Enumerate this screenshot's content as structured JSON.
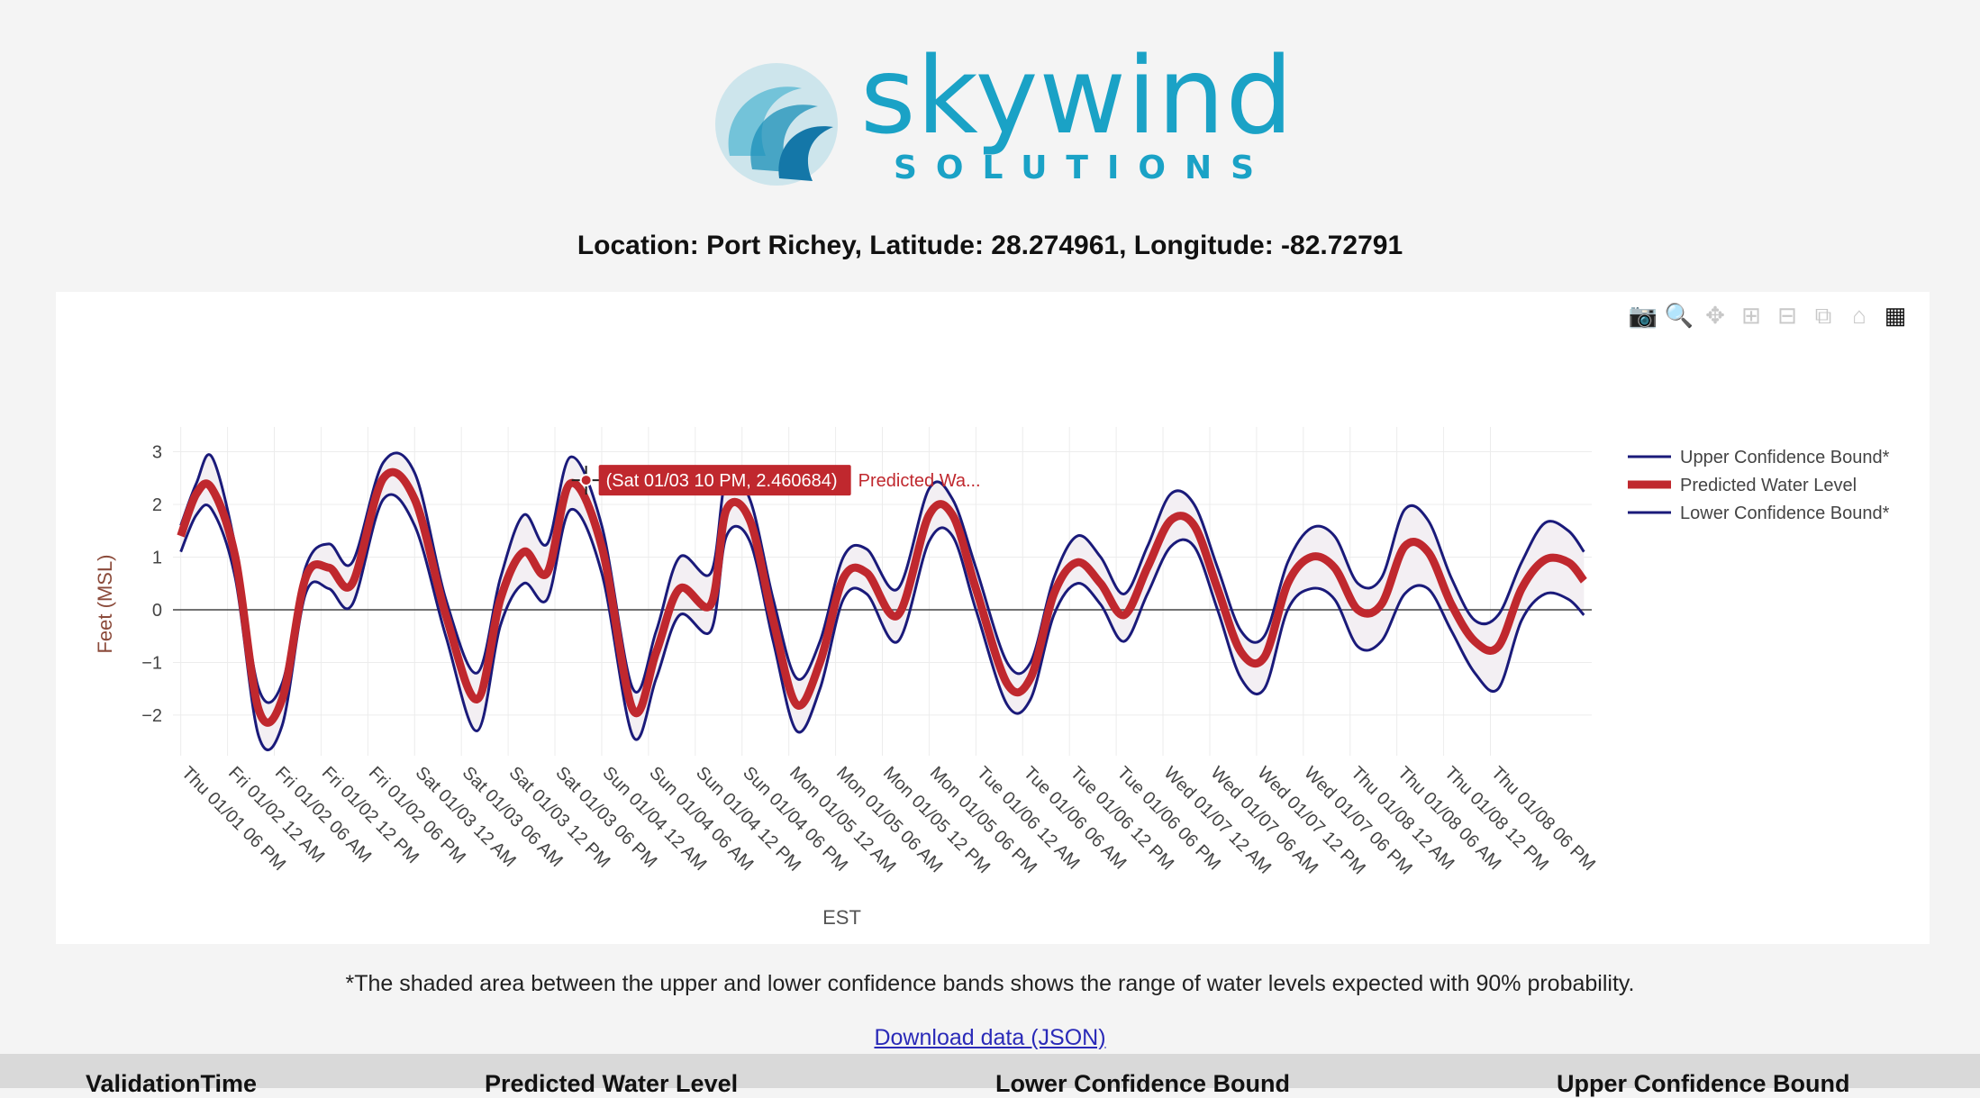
{
  "logo": {
    "name": "skywind",
    "tagline": "SOLUTIONS"
  },
  "location_text": "Location: Port Richey, Latitude: 28.274961, Longitude: -82.72791",
  "modebar": {
    "icons": [
      "camera-icon",
      "zoom-icon",
      "pan-icon",
      "zoom-in-icon",
      "zoom-out-icon",
      "autoscale-icon",
      "home-icon",
      "plotly-logo-icon"
    ]
  },
  "tooltip": {
    "text": "(Sat 01/03 10 PM, 2.460684)",
    "trace": "Predicted Wa..."
  },
  "footnote": "*The shaded area between the upper and lower confidence bands shows the range of water levels expected with 90% probability.",
  "download_link": "Download data (JSON)",
  "table": {
    "headers": [
      "ValidationTime",
      "Predicted Water Level",
      "Lower Confidence Bound",
      "Upper Confidence Bound"
    ]
  },
  "colors": {
    "band": "#1a1a7a",
    "predicted": "#c0282e",
    "accent": "#1aa2c6",
    "fill": "#f3eff3"
  },
  "chart_data": {
    "type": "line",
    "xlabel": "EST",
    "ylabel": "Feet (MSL)",
    "x_start": "Thu 01/01 06 PM",
    "x_step_hours": 6,
    "xlim_hours": [
      -1,
      181
    ],
    "ylim": [
      -2.6,
      3.3
    ],
    "yticks": [
      3,
      2,
      1,
      0,
      -1,
      -2
    ],
    "xtick_labels": [
      "Thu 01/01 06 PM",
      "Fri 01/02 12 AM",
      "Fri 01/02 06 AM",
      "Fri 01/02 12 PM",
      "Fri 01/02 06 PM",
      "Sat 01/03 12 AM",
      "Sat 01/03 06 AM",
      "Sat 01/03 12 PM",
      "Sat 01/03 06 PM",
      "Sun 01/04 12 AM",
      "Sun 01/04 06 AM",
      "Sun 01/04 12 PM",
      "Sun 01/04 06 PM",
      "Mon 01/05 12 AM",
      "Mon 01/05 06 AM",
      "Mon 01/05 12 PM",
      "Mon 01/05 06 PM",
      "Tue 01/06 12 AM",
      "Tue 01/06 06 AM",
      "Tue 01/06 12 PM",
      "Tue 01/06 06 PM",
      "Wed 01/07 12 AM",
      "Wed 01/07 06 AM",
      "Wed 01/07 12 PM",
      "Wed 01/07 06 PM",
      "Thu 01/08 12 AM",
      "Thu 01/08 06 AM",
      "Thu 01/08 12 PM",
      "Thu 01/08 06 PM"
    ],
    "legend_position": "top-right",
    "series": [
      {
        "name": "Upper Confidence Bound*",
        "color": "#1a1a7a",
        "x": [
          0,
          2,
          4,
          7,
          10,
          13,
          16,
          19,
          22,
          26,
          30,
          34,
          38,
          41,
          44,
          47,
          50,
          54,
          58,
          61,
          64,
          68,
          70,
          73,
          76,
          79,
          82,
          85,
          88,
          92,
          96,
          99,
          102,
          106,
          109,
          112,
          115,
          118,
          121,
          124,
          127,
          130,
          133,
          136,
          139,
          142,
          145,
          148,
          151,
          154,
          157,
          160,
          163,
          166,
          169,
          172,
          175,
          178,
          180
        ],
        "y": [
          1.6,
          2.4,
          2.9,
          1.2,
          -1.5,
          -1.4,
          0.8,
          1.25,
          0.9,
          2.8,
          2.6,
          0.2,
          -1.2,
          0.6,
          1.8,
          1.25,
          2.9,
          1.6,
          -1.5,
          -0.4,
          1.0,
          0.7,
          2.5,
          2.1,
          0.2,
          -1.3,
          -0.6,
          1.0,
          1.15,
          0.4,
          2.3,
          2.1,
          0.8,
          -1.0,
          -1.0,
          0.6,
          1.4,
          1.0,
          0.3,
          1.2,
          2.2,
          2.0,
          0.8,
          -0.4,
          -0.5,
          0.9,
          1.55,
          1.4,
          0.5,
          0.6,
          1.9,
          1.7,
          0.6,
          -0.2,
          -0.1,
          0.9,
          1.65,
          1.5,
          1.1
        ]
      },
      {
        "name": "Predicted Water Level",
        "color": "#c0282e",
        "x": [
          0,
          2,
          4,
          7,
          10,
          13,
          16,
          19,
          22,
          26,
          30,
          34,
          38,
          41,
          44,
          47,
          50,
          54,
          58,
          61,
          64,
          68,
          70,
          73,
          76,
          79,
          82,
          85,
          88,
          92,
          96,
          99,
          102,
          106,
          109,
          112,
          115,
          118,
          121,
          124,
          127,
          130,
          133,
          136,
          139,
          142,
          145,
          148,
          151,
          154,
          157,
          160,
          163,
          166,
          169,
          172,
          175,
          178,
          180
        ],
        "y": [
          1.4,
          2.2,
          2.3,
          1.0,
          -1.9,
          -1.7,
          0.6,
          0.8,
          0.5,
          2.5,
          2.1,
          -0.1,
          -1.7,
          0.2,
          1.1,
          0.7,
          2.4,
          1.2,
          -1.9,
          -0.8,
          0.4,
          0.1,
          1.9,
          1.7,
          -0.2,
          -1.8,
          -1.0,
          0.6,
          0.7,
          -0.1,
          1.8,
          1.8,
          0.4,
          -1.4,
          -1.3,
          0.3,
          0.9,
          0.5,
          -0.1,
          0.8,
          1.7,
          1.6,
          0.4,
          -0.8,
          -0.9,
          0.5,
          1.0,
          0.8,
          0.0,
          0.1,
          1.2,
          1.1,
          0.1,
          -0.6,
          -0.7,
          0.4,
          0.95,
          0.9,
          0.55
        ]
      },
      {
        "name": "Lower Confidence Bound*",
        "color": "#1a1a7a",
        "x": [
          0,
          2,
          4,
          7,
          10,
          13,
          16,
          19,
          22,
          26,
          30,
          34,
          38,
          41,
          44,
          47,
          50,
          54,
          58,
          61,
          64,
          68,
          70,
          73,
          76,
          79,
          82,
          85,
          88,
          92,
          96,
          99,
          102,
          106,
          109,
          112,
          115,
          118,
          121,
          124,
          127,
          130,
          133,
          136,
          139,
          142,
          145,
          148,
          151,
          154,
          157,
          160,
          163,
          166,
          169,
          172,
          175,
          178,
          180
        ],
        "y": [
          1.1,
          1.8,
          1.9,
          0.6,
          -2.4,
          -2.2,
          0.3,
          0.4,
          0.1,
          2.1,
          1.6,
          -0.5,
          -2.3,
          -0.3,
          0.5,
          0.2,
          1.9,
          0.7,
          -2.4,
          -1.3,
          -0.1,
          -0.4,
          1.4,
          1.3,
          -0.6,
          -2.3,
          -1.5,
          0.2,
          0.3,
          -0.6,
          1.3,
          1.4,
          0.0,
          -1.8,
          -1.7,
          -0.1,
          0.5,
          0.1,
          -0.6,
          0.3,
          1.2,
          1.2,
          0.0,
          -1.3,
          -1.5,
          0.0,
          0.4,
          0.2,
          -0.7,
          -0.6,
          0.3,
          0.4,
          -0.4,
          -1.2,
          -1.5,
          -0.2,
          0.3,
          0.2,
          -0.1
        ]
      }
    ],
    "highlight": {
      "x": 52,
      "y": 2.460684
    }
  }
}
